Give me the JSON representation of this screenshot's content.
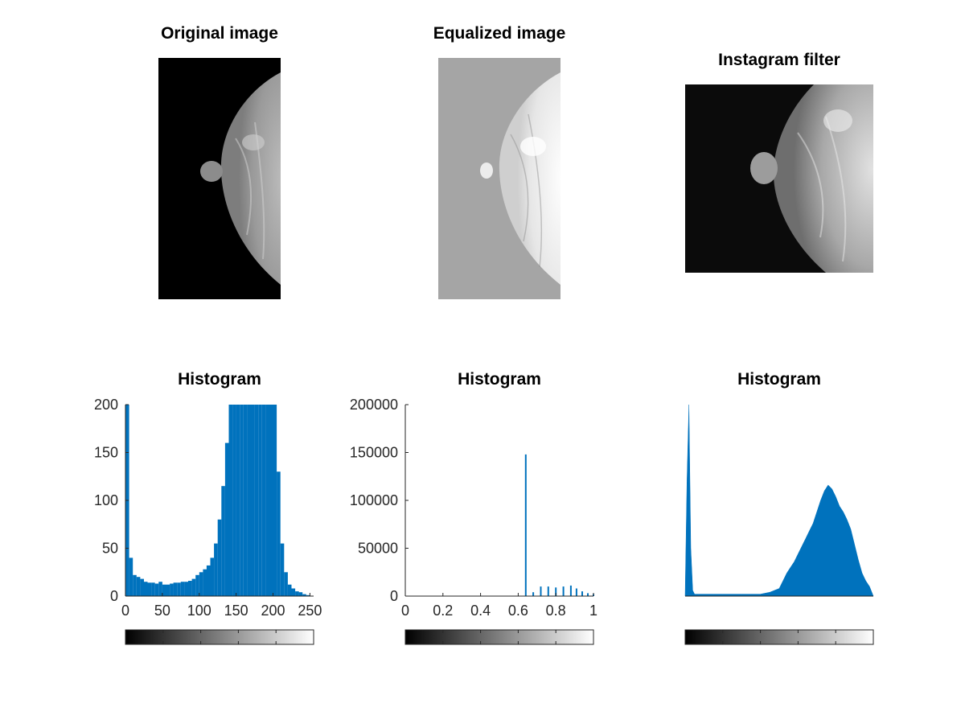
{
  "titles": {
    "original": "Original image",
    "equalized": "Equalized image",
    "instagram": "Instagram filter",
    "hist1": "Histogram",
    "hist2": "Histogram",
    "hist3": "Histogram"
  },
  "colors": {
    "bar": "#0072BD",
    "background": "#ffffff",
    "equalized_bg": "#a5a5a5",
    "original_bg": "#000000",
    "instagram_bg": "#0b0b0b"
  },
  "chart_data": [
    {
      "type": "bar",
      "title": "Histogram",
      "xlim": [
        0,
        255
      ],
      "ylim": [
        0,
        200
      ],
      "xticks": [
        "0",
        "50",
        "100",
        "150",
        "200",
        "250"
      ],
      "yticks": [
        "0",
        "50",
        "100",
        "150",
        "200"
      ],
      "grid": false,
      "colorbar": true,
      "x": [
        0,
        5,
        10,
        15,
        20,
        25,
        30,
        35,
        40,
        45,
        50,
        55,
        60,
        65,
        70,
        75,
        80,
        85,
        90,
        95,
        100,
        105,
        110,
        115,
        120,
        125,
        130,
        135,
        140,
        145,
        150,
        155,
        160,
        165,
        170,
        175,
        180,
        185,
        190,
        195,
        200,
        205,
        210,
        215,
        220,
        225,
        230,
        235,
        240,
        245,
        250,
        255
      ],
      "values": [
        200,
        40,
        22,
        20,
        18,
        15,
        14,
        14,
        13,
        15,
        12,
        12,
        13,
        14,
        14,
        15,
        15,
        16,
        18,
        22,
        25,
        28,
        32,
        40,
        55,
        80,
        115,
        160,
        200,
        200,
        200,
        200,
        200,
        200,
        200,
        200,
        200,
        200,
        200,
        200,
        200,
        130,
        55,
        25,
        12,
        8,
        5,
        4,
        2,
        1,
        0,
        0
      ]
    },
    {
      "type": "bar",
      "title": "Histogram",
      "xlim": [
        0,
        1
      ],
      "ylim": [
        0,
        200000
      ],
      "xticks": [
        "0",
        "0.2",
        "0.4",
        "0.6",
        "0.8",
        "1"
      ],
      "yticks": [
        "0",
        "50000",
        "100000",
        "150000",
        "200000"
      ],
      "grid": false,
      "colorbar": true,
      "x": [
        0.64,
        0.68,
        0.72,
        0.76,
        0.8,
        0.84,
        0.88,
        0.91,
        0.94,
        0.97,
        1.0
      ],
      "values": [
        148000,
        4000,
        10000,
        10000,
        9000,
        10000,
        11000,
        8000,
        5000,
        3000,
        2000
      ]
    },
    {
      "type": "area",
      "title": "Histogram",
      "xlim": [
        0,
        1
      ],
      "ylim": [
        0,
        1
      ],
      "xticks": [],
      "yticks": [],
      "grid": false,
      "colorbar": true,
      "x": [
        0.0,
        0.01,
        0.02,
        0.03,
        0.04,
        0.05,
        0.07,
        0.1,
        0.15,
        0.2,
        0.25,
        0.3,
        0.35,
        0.4,
        0.45,
        0.5,
        0.52,
        0.54,
        0.56,
        0.58,
        0.6,
        0.62,
        0.64,
        0.66,
        0.68,
        0.7,
        0.72,
        0.74,
        0.76,
        0.78,
        0.8,
        0.82,
        0.84,
        0.86,
        0.88,
        0.9,
        0.92,
        0.94,
        0.96,
        0.98,
        1.0
      ],
      "values": [
        0.0,
        0.6,
        1.0,
        0.25,
        0.03,
        0.01,
        0.01,
        0.01,
        0.01,
        0.01,
        0.01,
        0.01,
        0.01,
        0.01,
        0.02,
        0.04,
        0.08,
        0.12,
        0.15,
        0.18,
        0.22,
        0.26,
        0.3,
        0.34,
        0.38,
        0.44,
        0.5,
        0.55,
        0.58,
        0.56,
        0.52,
        0.47,
        0.44,
        0.4,
        0.35,
        0.27,
        0.19,
        0.12,
        0.08,
        0.05,
        0.0
      ]
    }
  ]
}
